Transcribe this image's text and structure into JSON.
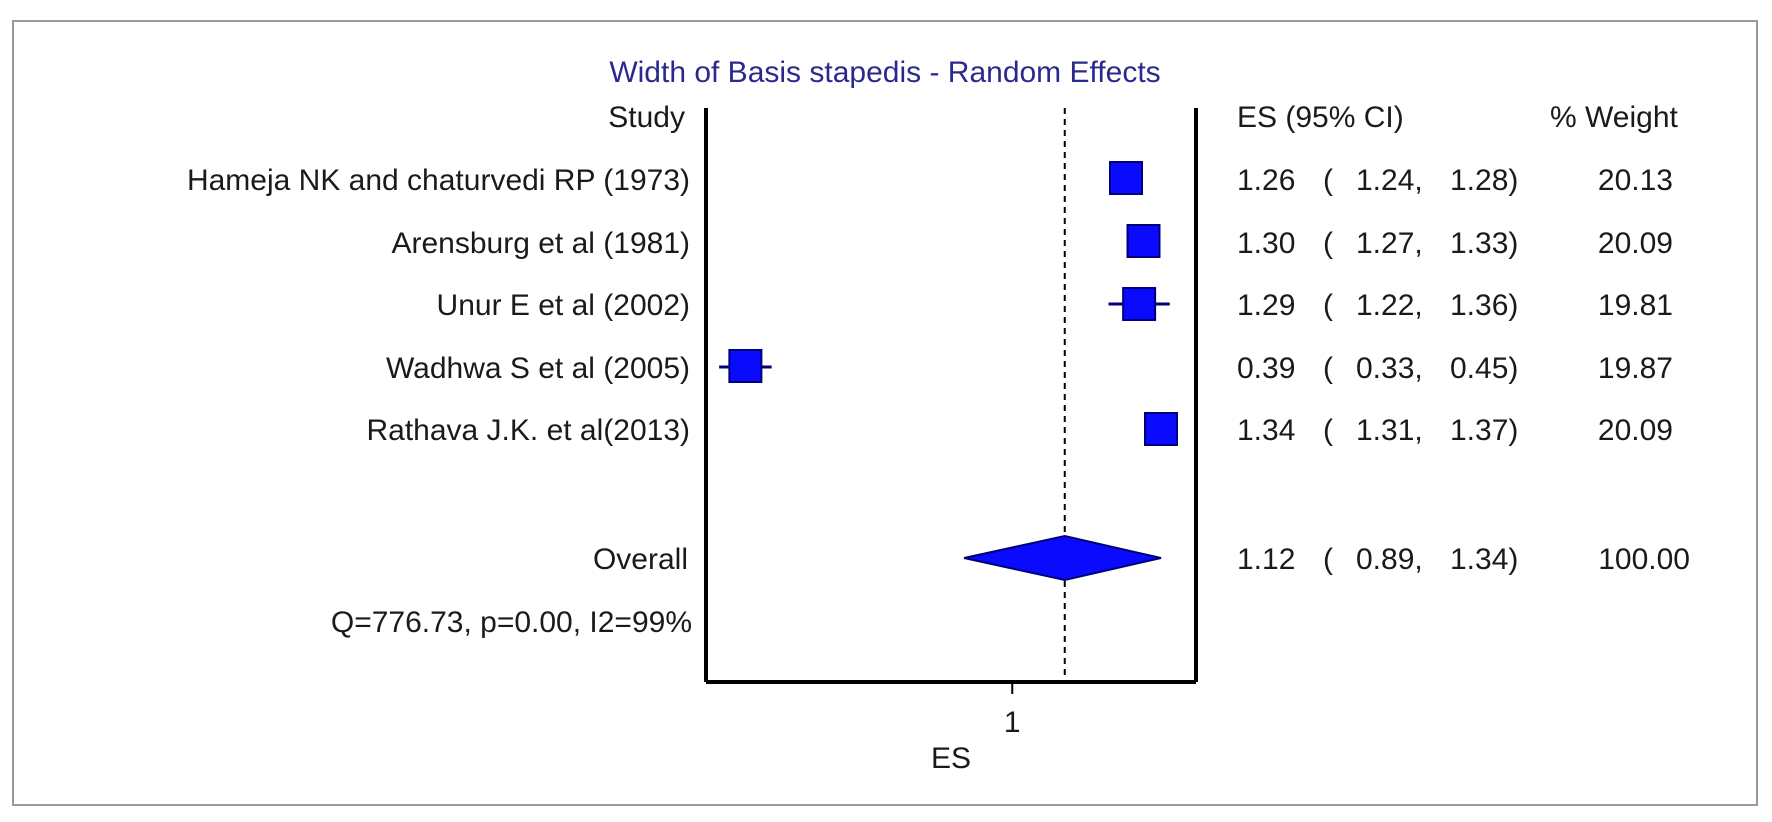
{
  "chart_data": {
    "type": "forest",
    "title": "Width of Basis stapedis - Random Effects",
    "header": {
      "study": "Study",
      "es_ci": "ES (95% CI)",
      "weight": "% Weight"
    },
    "xlabel": "ES",
    "xtick_labels": [
      "1"
    ],
    "xticks": [
      1
    ],
    "xlim": [
      0.3,
      1.42
    ],
    "reference_line": 1.12,
    "studies": [
      {
        "name": "Hameja NK and chaturvedi RP (1973)",
        "es": 1.26,
        "lo": 1.24,
        "hi": 1.28,
        "es_text": "1.26",
        "ci_lo_text": "1.24,",
        "ci_hi_text": "1.28)",
        "weight": "20.13"
      },
      {
        "name": "Arensburg et al (1981)",
        "es": 1.3,
        "lo": 1.27,
        "hi": 1.33,
        "es_text": "1.30",
        "ci_lo_text": "1.27,",
        "ci_hi_text": "1.33)",
        "weight": "20.09"
      },
      {
        "name": "Unur E et al (2002)",
        "es": 1.29,
        "lo": 1.22,
        "hi": 1.36,
        "es_text": "1.29",
        "ci_lo_text": "1.22,",
        "ci_hi_text": "1.36)",
        "weight": "19.81"
      },
      {
        "name": "Wadhwa S et al (2005)",
        "es": 0.39,
        "lo": 0.33,
        "hi": 0.45,
        "es_text": "0.39",
        "ci_lo_text": "0.33,",
        "ci_hi_text": "0.45)",
        "weight": "19.87"
      },
      {
        "name": "Rathava J.K. et al(2013)",
        "es": 1.34,
        "lo": 1.31,
        "hi": 1.37,
        "es_text": "1.34",
        "ci_lo_text": "1.31,",
        "ci_hi_text": "1.37)",
        "weight": "20.09"
      }
    ],
    "overall": {
      "name": "Overall",
      "es": 1.12,
      "lo": 0.89,
      "hi": 1.34,
      "es_text": "1.12",
      "ci_lo_text": "0.89,",
      "ci_hi_text": "1.34)",
      "weight": "100.00"
    },
    "heterogeneity": "Q=776.73, p=0.00, I2=99%",
    "open_paren": "(",
    "colors": {
      "marker": "#0a0aff",
      "marker_stroke": "#00007a",
      "axis": "#000000",
      "title": "#2a2a8c"
    }
  }
}
